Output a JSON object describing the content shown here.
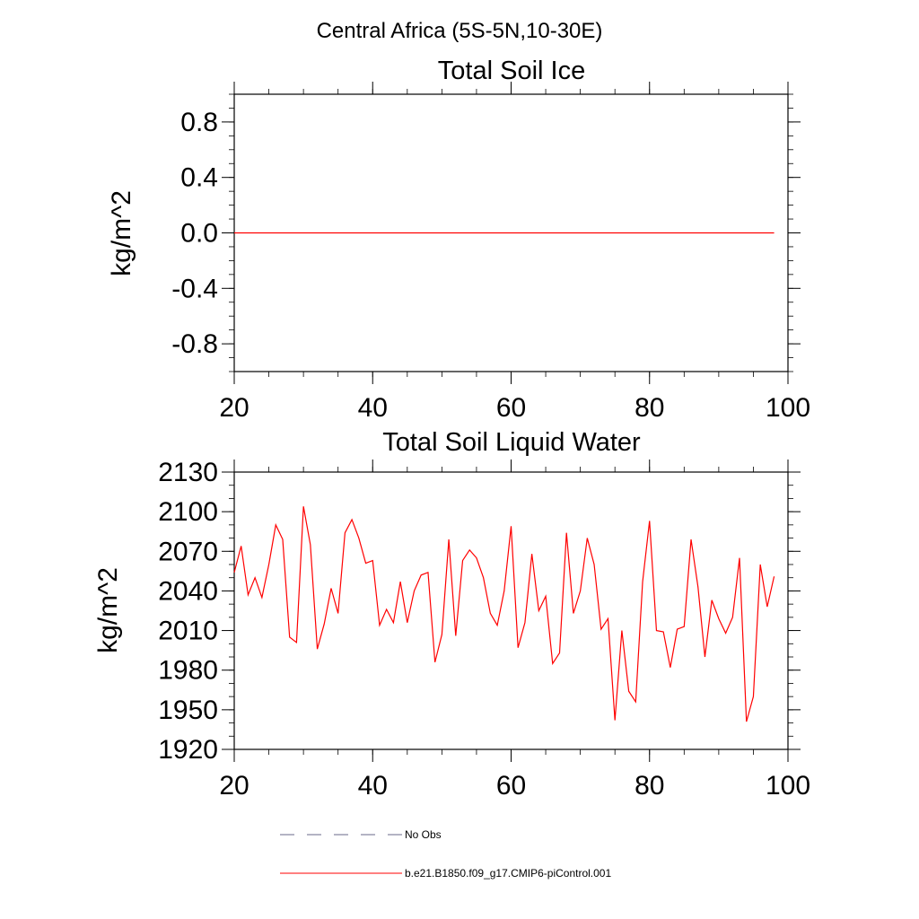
{
  "page_title": "Central Africa (5S-5N,10-30E)",
  "chart_data": [
    {
      "type": "line",
      "title": "Total Soil Ice",
      "xlabel": "",
      "ylabel": "kg/m^2",
      "xlim": [
        20,
        100
      ],
      "ylim": [
        -1.0,
        1.0
      ],
      "x_ticks": [
        20,
        40,
        60,
        80,
        100
      ],
      "x_tick_labels": [
        "20",
        "40",
        "60",
        "80",
        "100"
      ],
      "y_ticks": [
        -0.8,
        -0.4,
        0.0,
        0.4,
        0.8
      ],
      "y_tick_labels": [
        "-0.8",
        "-0.4",
        "0.0",
        "0.4",
        "0.8"
      ],
      "series_color": "#ff0000",
      "x_start": 20,
      "values": [
        0,
        0,
        0,
        0,
        0,
        0,
        0,
        0,
        0,
        0,
        0,
        0,
        0,
        0,
        0,
        0,
        0,
        0,
        0,
        0,
        0,
        0,
        0,
        0,
        0,
        0,
        0,
        0,
        0,
        0,
        0,
        0,
        0,
        0,
        0,
        0,
        0,
        0,
        0,
        0,
        0,
        0,
        0,
        0,
        0,
        0,
        0,
        0,
        0,
        0,
        0,
        0,
        0,
        0,
        0,
        0,
        0,
        0,
        0,
        0,
        0,
        0,
        0,
        0,
        0,
        0,
        0,
        0,
        0,
        0,
        0,
        0,
        0,
        0,
        0,
        0,
        0,
        0,
        0
      ]
    },
    {
      "type": "line",
      "title": "Total Soil Liquid Water",
      "xlabel": "",
      "ylabel": "kg/m^2",
      "xlim": [
        20,
        100
      ],
      "ylim": [
        1920,
        2130
      ],
      "x_ticks": [
        20,
        40,
        60,
        80,
        100
      ],
      "x_tick_labels": [
        "20",
        "40",
        "60",
        "80",
        "100"
      ],
      "y_ticks": [
        1920,
        1950,
        1980,
        2010,
        2040,
        2070,
        2100,
        2130
      ],
      "y_tick_labels": [
        "1920",
        "1950",
        "1980",
        "2010",
        "2040",
        "2070",
        "2100",
        "2130"
      ],
      "series_color": "#ff0000",
      "x_start": 20,
      "values": [
        2054,
        2074,
        2037,
        2050,
        2035,
        2060,
        2090,
        2079,
        2005,
        2001,
        2104,
        2075,
        1996,
        2015,
        2042,
        2023,
        2084,
        2094,
        2080,
        2061,
        2063,
        2014,
        2026,
        2016,
        2047,
        2016,
        2040,
        2052,
        2054,
        1986,
        2007,
        2079,
        2006,
        2063,
        2071,
        2065,
        2050,
        2023,
        2014,
        2040,
        2089,
        1997,
        2016,
        2068,
        2025,
        2036,
        1985,
        1993,
        2084,
        2023,
        2040,
        2080,
        2060,
        2011,
        2019,
        1942,
        2010,
        1964,
        1956,
        2047,
        2093,
        2010,
        2009,
        1982,
        2011,
        2013,
        2079,
        2043,
        1990,
        2033,
        2019,
        2008,
        2020,
        2065,
        1941,
        1960,
        2060,
        2028,
        2051
      ]
    }
  ],
  "legend": {
    "items": [
      {
        "label": "No Obs",
        "color": "#6a6a8a",
        "style": "dashed"
      },
      {
        "label": "b.e21.B1850.f09_g17.CMIP6-piControl.001",
        "color": "#ff0000",
        "style": "solid"
      }
    ]
  }
}
